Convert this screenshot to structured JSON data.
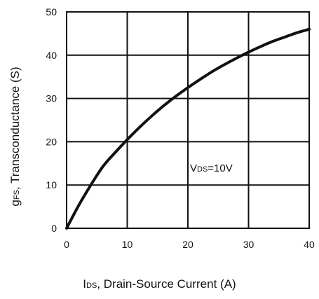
{
  "chart_data": {
    "type": "line",
    "x": [
      0,
      2,
      4,
      6,
      8,
      10,
      12,
      14,
      16,
      18,
      20,
      22,
      24,
      26,
      28,
      30,
      32,
      34,
      36,
      38,
      40
    ],
    "series": [
      {
        "values": [
          0,
          5.3,
          10,
          14.3,
          17.5,
          20.5,
          23.3,
          25.9,
          28.3,
          30.5,
          32.5,
          34.4,
          36.2,
          37.8,
          39.3,
          40.7,
          42,
          43.2,
          44.2,
          45.2,
          46
        ]
      }
    ],
    "xlim": [
      0,
      40
    ],
    "ylim": [
      0,
      50
    ],
    "xticks": [
      "0",
      "10",
      "20",
      "30",
      "40"
    ],
    "yticks": [
      "0",
      "10",
      "20",
      "30",
      "40",
      "50"
    ],
    "xlabel": {
      "sym": "I",
      "sub": "DS",
      "text": ", Drain-Source Current (A)"
    },
    "ylabel": {
      "sym": "g",
      "sub": "FS",
      "text": ", Transconductance (S)"
    },
    "annotation": {
      "pre": "V",
      "sub": "DS",
      "post": "=10V"
    },
    "grid": true,
    "line_color": "#111111"
  }
}
